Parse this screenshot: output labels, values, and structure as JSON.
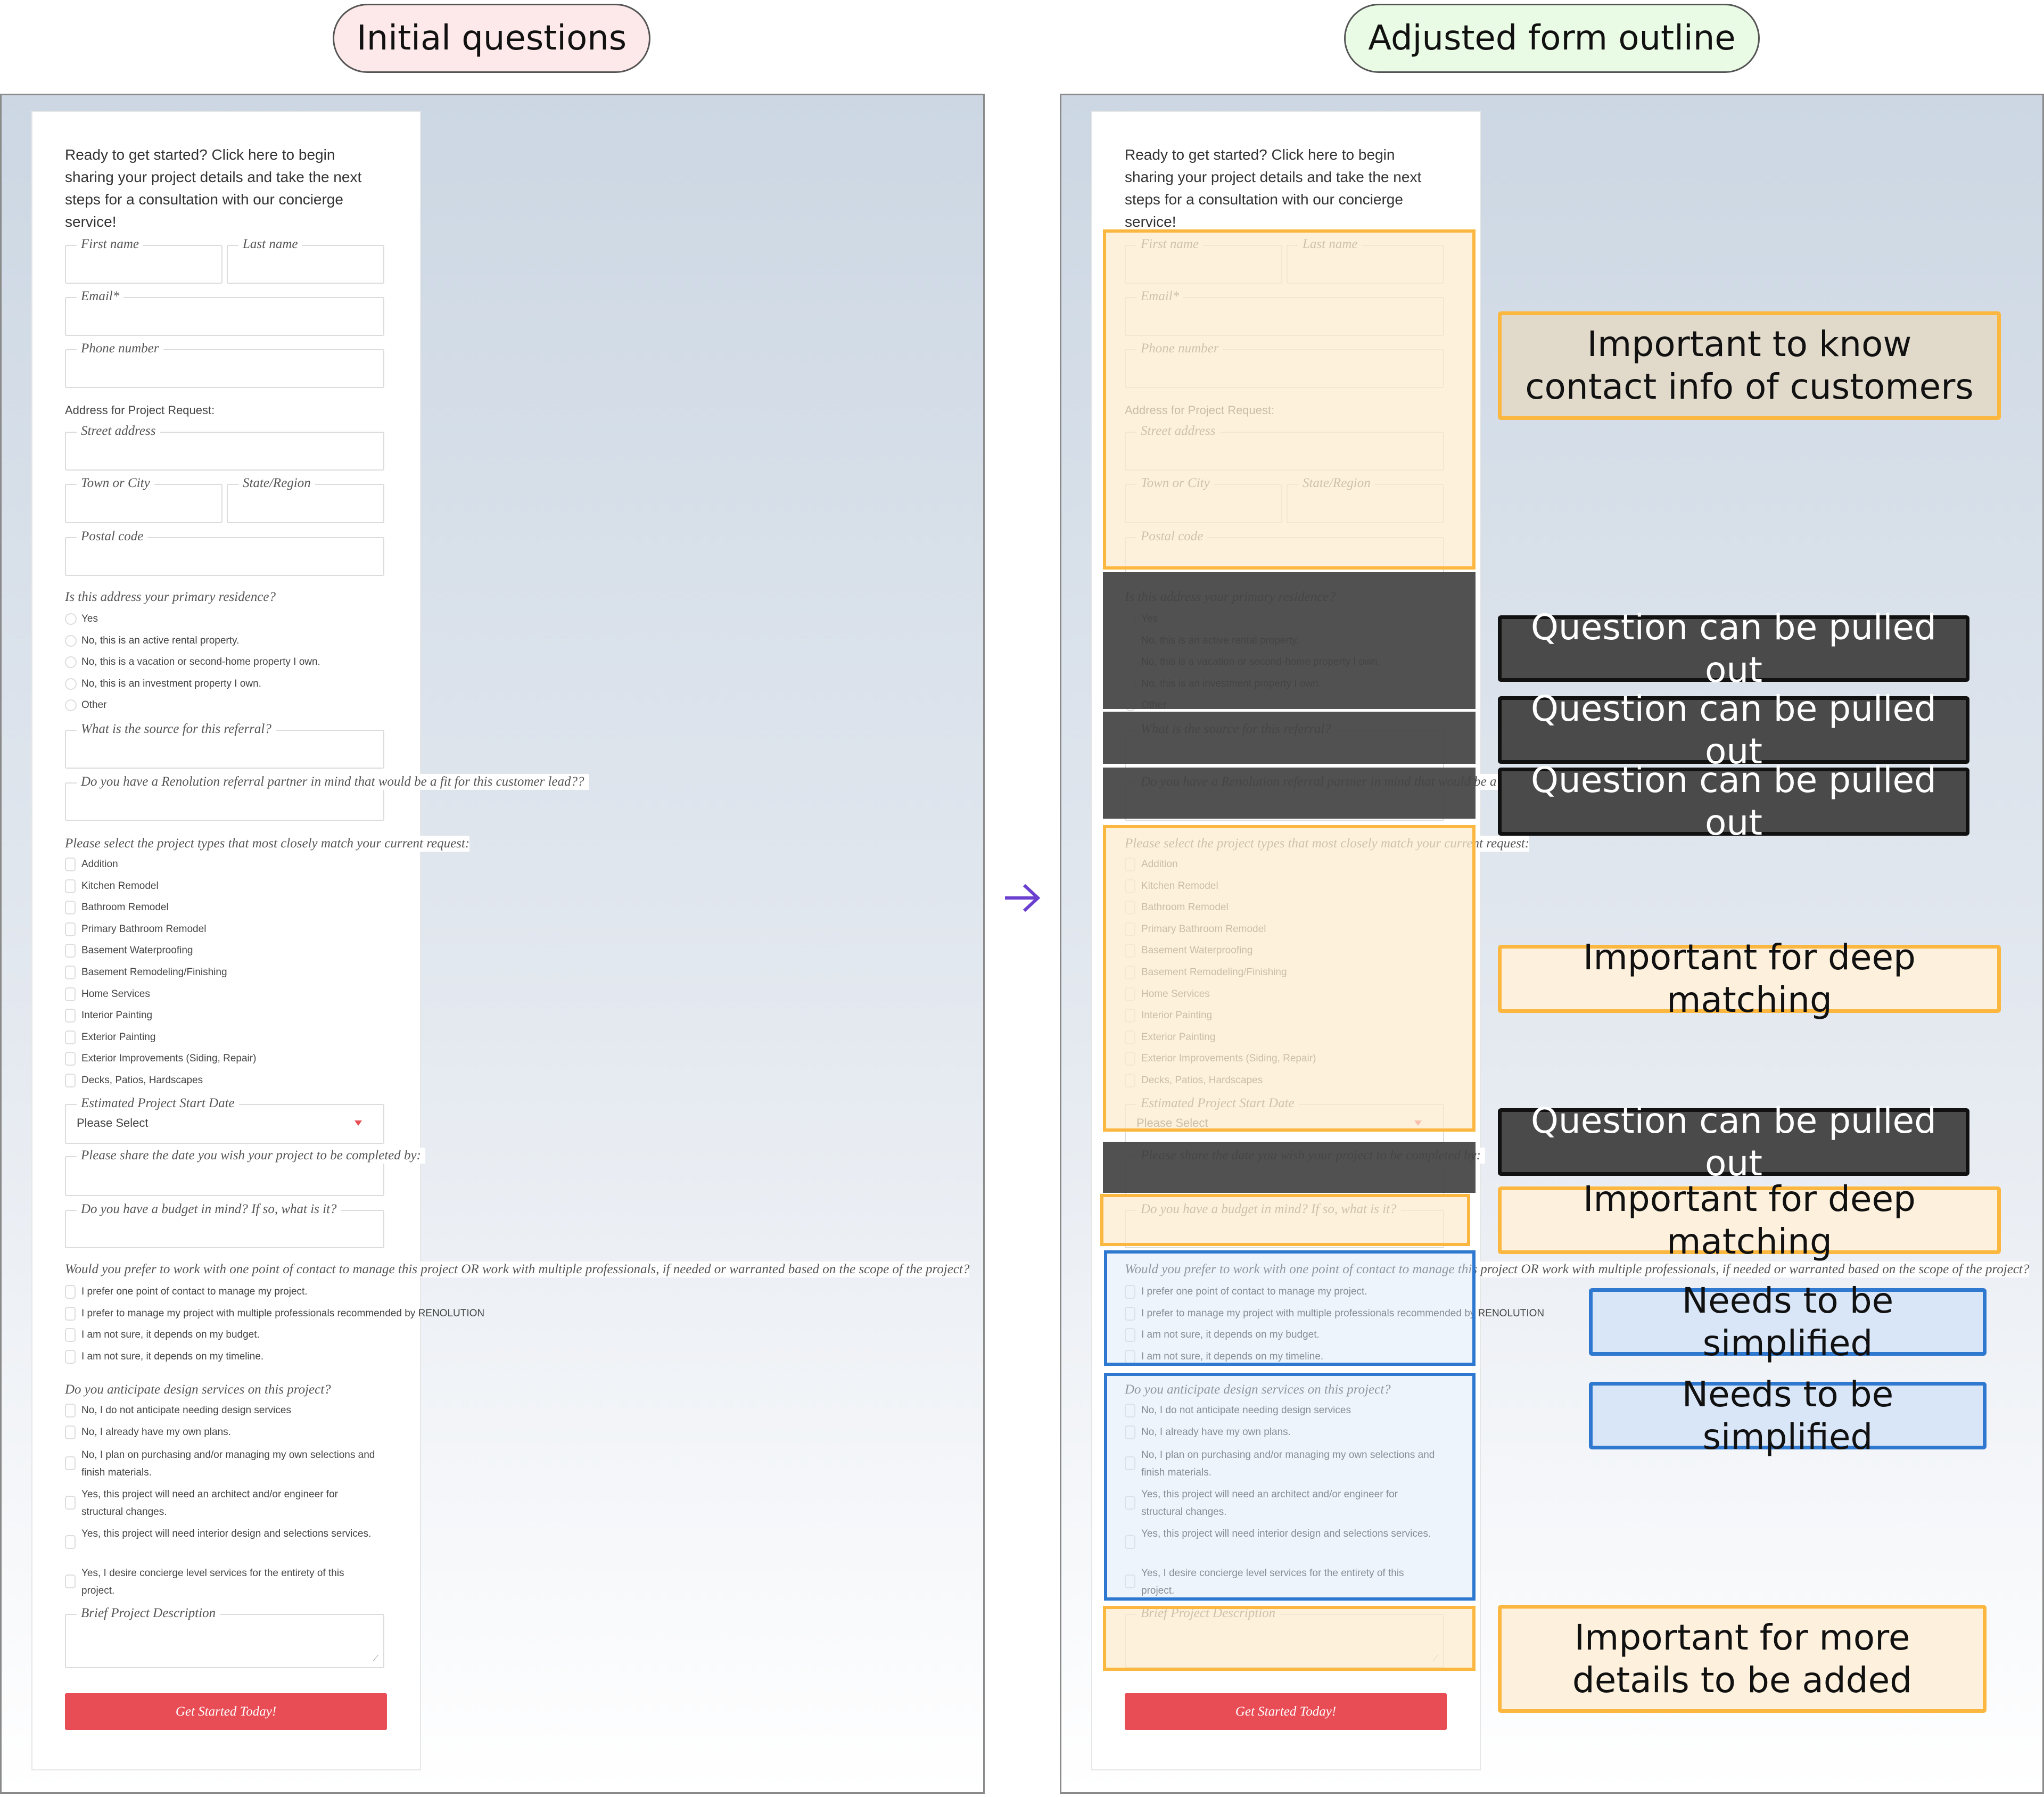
{
  "headers": {
    "left": "Initial questions",
    "right": "Adjusted form outline"
  },
  "header_colors": {
    "left_fill": "#fde9e9",
    "right_fill": "#e9fbe4"
  },
  "arrow_icon": "right-arrow",
  "form": {
    "intro": "Ready to get started?  Click here to begin sharing your project details and take the next steps for a consultation with our concierge service!",
    "first_name": "First name",
    "last_name": "Last name",
    "email": "Email*",
    "phone": "Phone number",
    "address_heading": "Address for Project Request:",
    "street": "Street address",
    "town": "Town or City",
    "state": "State/Region",
    "postal": "Postal code",
    "residence_question": "Is this address your primary residence?",
    "residence_options": [
      "Yes",
      "No, this is an active rental property.",
      "No, this is a vacation or second-home property I own.",
      "No, this is an investment property I own.",
      "Other"
    ],
    "referral_source": "What is the source for this referral?",
    "referral_partner": "Do you have a Renolution referral partner in mind that would be a fit for this customer lead??",
    "project_types_question": "Please select the project types that most closely match your current request:",
    "project_types": [
      "Addition",
      "Kitchen Remodel",
      "Bathroom Remodel",
      "Primary Bathroom Remodel",
      "Basement Waterproofing",
      "Basement Remodeling/Finishing",
      "Home Services",
      "Interior Painting",
      "Exterior Painting",
      "Exterior Improvements (Siding, Repair)",
      "Decks, Patios, Hardscapes"
    ],
    "start_date_label": "Estimated Project Start Date",
    "start_date_value": "Please Select",
    "completion_date": "Please share the date you wish your project to be completed by:",
    "budget": "Do you have a budget in mind? If so, what is it?",
    "contact_question": "Would you prefer to work with one point of contact to manage this project OR work with multiple professionals, if needed or warranted based on the scope of the project?",
    "contact_options": [
      "I prefer one point of contact to manage my project.",
      "I prefer to manage my project with multiple professionals recommended by RENOLUTION",
      "I am not sure, it depends on my budget.",
      "I am not sure, it depends on my timeline."
    ],
    "design_question": "Do you anticipate design services on this project?",
    "design_options": [
      "No, I do not anticipate needing design services",
      "No, I already have my own plans.",
      "No, I plan on purchasing and/or managing my own selections and finish materials.",
      "Yes, this project will need an architect and/or engineer for structural changes.",
      "Yes, this project will need interior design and selections services.",
      "Yes, I desire concierge level services for the entirety of this project."
    ],
    "description": "Brief Project Description",
    "submit": "Get Started Today!",
    "accent": "#e84c55"
  },
  "annotations": [
    {
      "text": "Important to know contact info of customers",
      "style": "tan"
    },
    {
      "text": "Question can be pulled out",
      "style": "dark"
    },
    {
      "text": "Question can be pulled out",
      "style": "dark"
    },
    {
      "text": "Question can be pulled out",
      "style": "dark"
    },
    {
      "text": "Important for deep matching",
      "style": "orange"
    },
    {
      "text": "Question can be pulled out",
      "style": "dark"
    },
    {
      "text": "Important for deep matching",
      "style": "orange"
    },
    {
      "text": "Needs to be simplified",
      "style": "blue"
    },
    {
      "text": "Needs to be simplified",
      "style": "blue"
    },
    {
      "text": "Important for more details to be added",
      "style": "orange"
    }
  ],
  "colors": {
    "keep": "#fbb740",
    "remove": "#4a4a4a",
    "simplify": "#2f78d0"
  }
}
